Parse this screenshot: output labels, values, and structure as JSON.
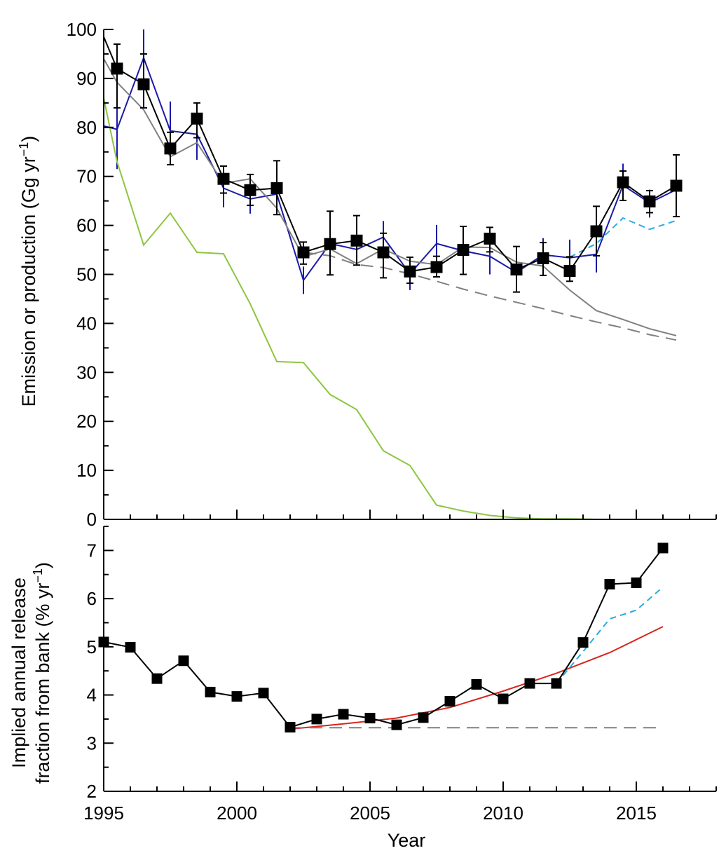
{
  "chart_data": [
    {
      "type": "line",
      "ylabel": "Emission or production (Gg yr",
      "ylabel_sup": "−1",
      "ylabel_end": ")",
      "xlim": [
        1995,
        2018
      ],
      "ylim": [
        0,
        100
      ],
      "yticks": [
        "0",
        "10",
        "20",
        "30",
        "40",
        "50",
        "60",
        "70",
        "80",
        "90",
        "100"
      ],
      "grid": false,
      "series": [
        {
          "style": "marker-errorbar",
          "color": "#000000",
          "x": [
            1995.5,
            1996.5,
            1997.5,
            1998.5,
            1999.5,
            2000.5,
            2001.5,
            2002.5,
            2003.5,
            2004.5,
            2005.5,
            2006.5,
            2007.5,
            2008.5,
            2009.5,
            2010.5,
            2011.5,
            2012.5,
            2013.5,
            2014.5,
            2015.5,
            2016.5
          ],
          "y": [
            92.0,
            88.8,
            75.7,
            81.8,
            69.5,
            67.2,
            67.6,
            54.5,
            56.2,
            56.9,
            54.5,
            50.6,
            51.5,
            55.0,
            57.3,
            51.0,
            53.3,
            50.7,
            58.8,
            68.8,
            64.9,
            68.1
          ],
          "err_low": [
            84.0,
            84.0,
            72.4,
            77.9,
            66.6,
            64.1,
            62.2,
            52.1,
            49.9,
            51.9,
            49.3,
            48.2,
            49.5,
            50.0,
            54.6,
            46.4,
            49.8,
            48.6,
            53.8,
            65.1,
            62.6,
            61.8
          ],
          "err_high": [
            97.0,
            95.0,
            79.0,
            85.0,
            72.1,
            70.4,
            73.2,
            56.6,
            62.9,
            62.0,
            58.4,
            53.5,
            53.7,
            59.8,
            59.6,
            55.7,
            56.5,
            53.6,
            63.9,
            71.1,
            67.1,
            74.4
          ]
        },
        {
          "style": "line",
          "color": "#000000",
          "x": [
            1995.0,
            1995.5
          ],
          "y": [
            98.5,
            92.0
          ]
        },
        {
          "style": "line-errorbar",
          "color": "#1a1aa8",
          "x": [
            1995.0,
            1995.5,
            1996.5,
            1997.5,
            1998.5,
            1999.5,
            2000.5,
            2001.5,
            2002.5,
            2003.5,
            2004.5,
            2005.5,
            2006.5,
            2007.5,
            2008.5,
            2009.5,
            2010.5,
            2011.5,
            2012.5,
            2013.5,
            2014.5,
            2015.5,
            2016.5
          ],
          "y": [
            80.3,
            79.6,
            94.2,
            79.3,
            78.6,
            67.6,
            65.4,
            66.4,
            48.8,
            56.3,
            55.1,
            57.6,
            50.1,
            56.3,
            54.8,
            53.7,
            50.4,
            54.0,
            53.4,
            54.1,
            68.2,
            64.6,
            67.3
          ],
          "err_low": [
            null,
            71.5,
            86.0,
            73.6,
            73.4,
            63.7,
            62.4,
            64.5,
            46.0,
            53.4,
            53.2,
            53.5,
            46.8,
            53.1,
            51.8,
            50.0,
            47.4,
            51.3,
            50.2,
            50.4,
            65.2,
            61.6,
            64.4
          ],
          "err_high": [
            null,
            86.6,
            100.0,
            85.3,
            84.3,
            71.9,
            68.6,
            68.2,
            51.6,
            59.0,
            57.0,
            60.9,
            53.1,
            60.1,
            57.6,
            57.1,
            53.1,
            57.4,
            57.1,
            57.8,
            72.6,
            67.3,
            70.4
          ]
        },
        {
          "style": "line",
          "color": "#808080",
          "x": [
            1995.0,
            1995.5,
            1996.5,
            1997.5,
            1998.5,
            1999.5,
            2000.5,
            2001.5,
            2002.5,
            2003.5,
            2004.5,
            2005.5,
            2006.5,
            2007.5,
            2008.5,
            2009.5,
            2010.5,
            2011.5,
            2012.5,
            2013.5,
            2014.5,
            2015.5,
            2016.5
          ],
          "y": [
            94.0,
            89.2,
            83.6,
            74.0,
            76.9,
            68.6,
            69.5,
            63.5,
            53.6,
            55.2,
            52.2,
            55.2,
            52.7,
            52.0,
            55.6,
            55.5,
            52.5,
            51.7,
            46.8,
            42.6,
            40.8,
            38.9,
            37.5
          ]
        },
        {
          "style": "dashed",
          "color": "#808080",
          "x": [
            2002.5,
            2003.5,
            2004.5,
            2005.5,
            2006.5,
            2007.5,
            2008.5,
            2009.5,
            2010.5,
            2011.5,
            2012.5,
            2013.5,
            2014.5,
            2015.5,
            2016.5
          ],
          "y": [
            54.5,
            53.8,
            52.0,
            51.4,
            50.1,
            48.6,
            47.0,
            45.6,
            44.3,
            43.0,
            41.6,
            40.3,
            39.1,
            37.7,
            36.6
          ]
        },
        {
          "style": "line",
          "color": "#8cc63f",
          "x": [
            1995.0,
            1995.5,
            1996.5,
            1997.5,
            1998.5,
            1999.5,
            2000.5,
            2001.5,
            2002.5,
            2003.5,
            2004.5,
            2005.5,
            2006.5,
            2007.5,
            2008.5,
            2009.5,
            2010.5,
            2011.5,
            2012.5,
            2013.5,
            2014.5
          ],
          "y": [
            86.0,
            73.0,
            56.0,
            62.5,
            54.5,
            54.2,
            44.0,
            32.2,
            32.0,
            25.5,
            22.4,
            14.0,
            11.0,
            2.9,
            1.7,
            0.8,
            0.3,
            0.1,
            0.1,
            0.0,
            0.0
          ]
        },
        {
          "style": "dashed-short",
          "color": "#29abe2",
          "x": [
            2012.5,
            2013.5,
            2014.5,
            2015.5,
            2016.5
          ],
          "y": [
            53.5,
            56.3,
            61.5,
            59.2,
            61.0
          ]
        }
      ]
    },
    {
      "type": "line",
      "xlabel": "Year",
      "ylabel_line1": "Implied annual release",
      "ylabel_line2": "fraction from bank (% yr",
      "ylabel_sup": "−1",
      "ylabel_end": ")",
      "xlim": [
        1995,
        2018
      ],
      "ylim": [
        2,
        7.5
      ],
      "yticks": [
        "2",
        "3",
        "4",
        "5",
        "6",
        "7"
      ],
      "xticks": [
        "1995",
        "2000",
        "2005",
        "2010",
        "2015"
      ],
      "grid": false,
      "series": [
        {
          "style": "marker",
          "color": "#000000",
          "x": [
            1995,
            1996,
            1997,
            1998,
            1999,
            2000,
            2001,
            2002,
            2003,
            2004,
            2005,
            2006,
            2007,
            2008,
            2009,
            2010,
            2011,
            2012,
            2013,
            2014,
            2015,
            2016
          ],
          "y": [
            5.1,
            4.99,
            4.34,
            4.71,
            4.06,
            3.97,
            4.04,
            3.33,
            3.5,
            3.6,
            3.52,
            3.38,
            3.53,
            3.87,
            4.22,
            3.92,
            4.24,
            4.24,
            5.09,
            6.3,
            6.33,
            7.05
          ]
        },
        {
          "style": "line",
          "color": "#d7261e",
          "x": [
            2002,
            2004,
            2006,
            2008,
            2010,
            2012,
            2014,
            2016
          ],
          "y": [
            3.29,
            3.4,
            3.52,
            3.74,
            4.08,
            4.45,
            4.88,
            5.42
          ]
        },
        {
          "style": "dashed",
          "color": "#808080",
          "x": [
            2002,
            2016
          ],
          "y": [
            3.32,
            3.32
          ]
        },
        {
          "style": "dashed-short",
          "color": "#29abe2",
          "x": [
            2012,
            2013,
            2014,
            2015,
            2016
          ],
          "y": [
            4.24,
            4.9,
            5.58,
            5.76,
            6.24
          ]
        }
      ]
    }
  ]
}
